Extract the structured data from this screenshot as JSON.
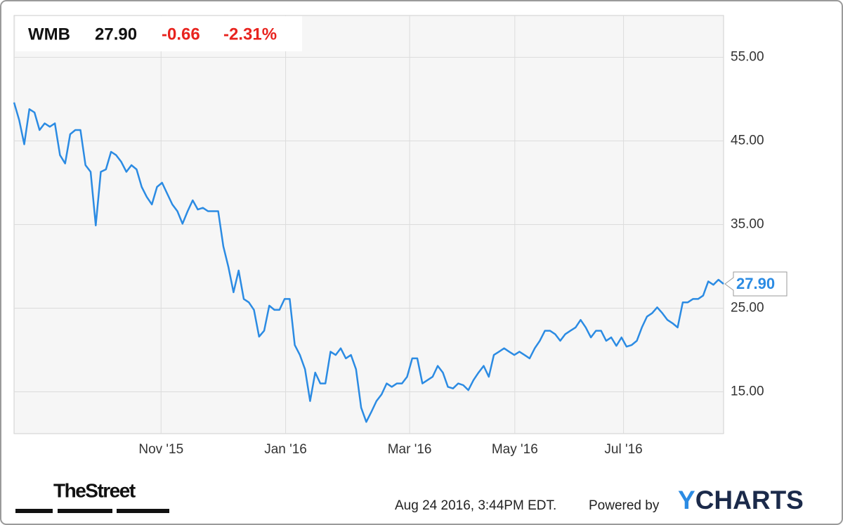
{
  "chart_data": {
    "type": "line",
    "ticker": "WMB",
    "price": "27.90",
    "change": "-0.66",
    "change_pct": "-2.31%",
    "color": "#2b8be3",
    "values": [
      49.6,
      47.5,
      44.6,
      48.8,
      48.4,
      46.3,
      47.1,
      46.7,
      47.1,
      43.3,
      42.3,
      45.8,
      46.3,
      46.3,
      42.1,
      41.3,
      34.9,
      41.3,
      41.6,
      43.7,
      43.3,
      42.5,
      41.3,
      42.1,
      41.6,
      39.5,
      38.3,
      37.4,
      39.5,
      40.0,
      38.7,
      37.4,
      36.6,
      35.1,
      36.6,
      37.9,
      36.8,
      37.0,
      36.6,
      36.6,
      36.6,
      32.4,
      29.9,
      26.9,
      29.5,
      26.1,
      25.7,
      24.8,
      21.6,
      22.3,
      25.3,
      24.8,
      24.8,
      26.1,
      26.1,
      20.6,
      19.4,
      17.7,
      13.9,
      17.3,
      16.0,
      16.0,
      19.8,
      19.4,
      20.2,
      19.0,
      19.4,
      17.7,
      13.1,
      11.4,
      12.6,
      13.9,
      14.7,
      16.0,
      15.6,
      16.0,
      16.0,
      16.8,
      19.0,
      19.0,
      16.0,
      16.4,
      16.8,
      18.1,
      17.3,
      15.6,
      15.4,
      16.0,
      15.8,
      15.2,
      16.4,
      17.3,
      18.1,
      16.8,
      19.4,
      19.8,
      20.2,
      19.8,
      19.4,
      19.8,
      19.4,
      19.0,
      20.2,
      21.1,
      22.3,
      22.3,
      21.9,
      21.1,
      21.9,
      22.3,
      22.7,
      23.6,
      22.7,
      21.5,
      22.3,
      22.3,
      21.1,
      21.5,
      20.5,
      21.5,
      20.4,
      20.6,
      21.1,
      22.7,
      24.0,
      24.4,
      25.1,
      24.4,
      23.6,
      23.2,
      22.7,
      25.7,
      25.7,
      26.1,
      26.1,
      26.5,
      28.2,
      27.8,
      28.4,
      27.9
    ],
    "xlim": [
      0,
      139
    ],
    "xticks": [
      {
        "value": 28.8,
        "label": "Nov '15"
      },
      {
        "value": 53.2,
        "label": "Jan '16"
      },
      {
        "value": 77.5,
        "label": "Mar '16"
      },
      {
        "value": 98.1,
        "label": "May '16"
      },
      {
        "value": 119.4,
        "label": "Jul '16"
      }
    ],
    "ylim": [
      10,
      60
    ],
    "yticks": [
      {
        "value": 15,
        "label": "15.00"
      },
      {
        "value": 25,
        "label": "25.00"
      },
      {
        "value": 35,
        "label": "35.00"
      },
      {
        "value": 45,
        "label": "45.00"
      },
      {
        "value": 55,
        "label": "55.00"
      }
    ],
    "grid": true,
    "footer": {
      "source": "TheStreet",
      "timestamp": "Aug 24 2016, 3:44PM EDT.",
      "powered": "Powered by",
      "brand": "YCHARTS"
    }
  }
}
